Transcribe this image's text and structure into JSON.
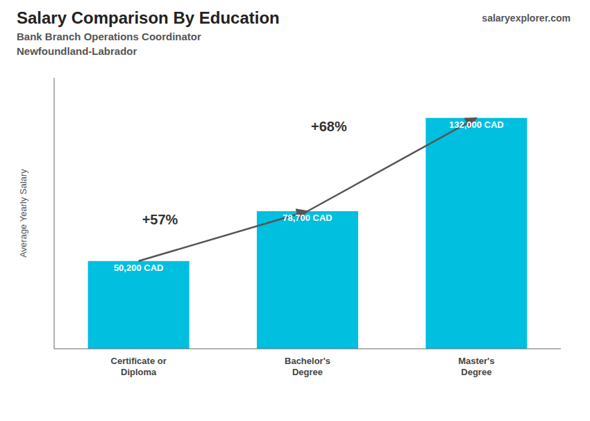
{
  "chart_data": {
    "type": "bar",
    "title": "Salary Comparison By Education",
    "subtitle": [
      "Bank Branch Operations Coordinator",
      "Newfoundland-Labrador"
    ],
    "categories": [
      "Certificate or\nDiploma",
      "Bachelor's\nDegree",
      "Master's\nDegree"
    ],
    "values": [
      50200,
      78700,
      132000
    ],
    "value_labels": [
      "50,200 CAD",
      "78,700 CAD",
      "132,000 CAD"
    ],
    "data_labels": true,
    "color": "#00bfdf",
    "ylabel": "Average Yearly Salary",
    "ylim": [
      0,
      155000
    ],
    "tick_labels": "x",
    "grid": false,
    "annotations": [
      {
        "text": "+57%",
        "from": "Certificate or\nDiploma",
        "to": "Bachelor's\nDegree"
      },
      {
        "text": "+68%",
        "from": "Bachelor's\nDegree",
        "to": "Master's\nDegree"
      },
      {
        "text": "salaryexplorer.com"
      }
    ]
  }
}
